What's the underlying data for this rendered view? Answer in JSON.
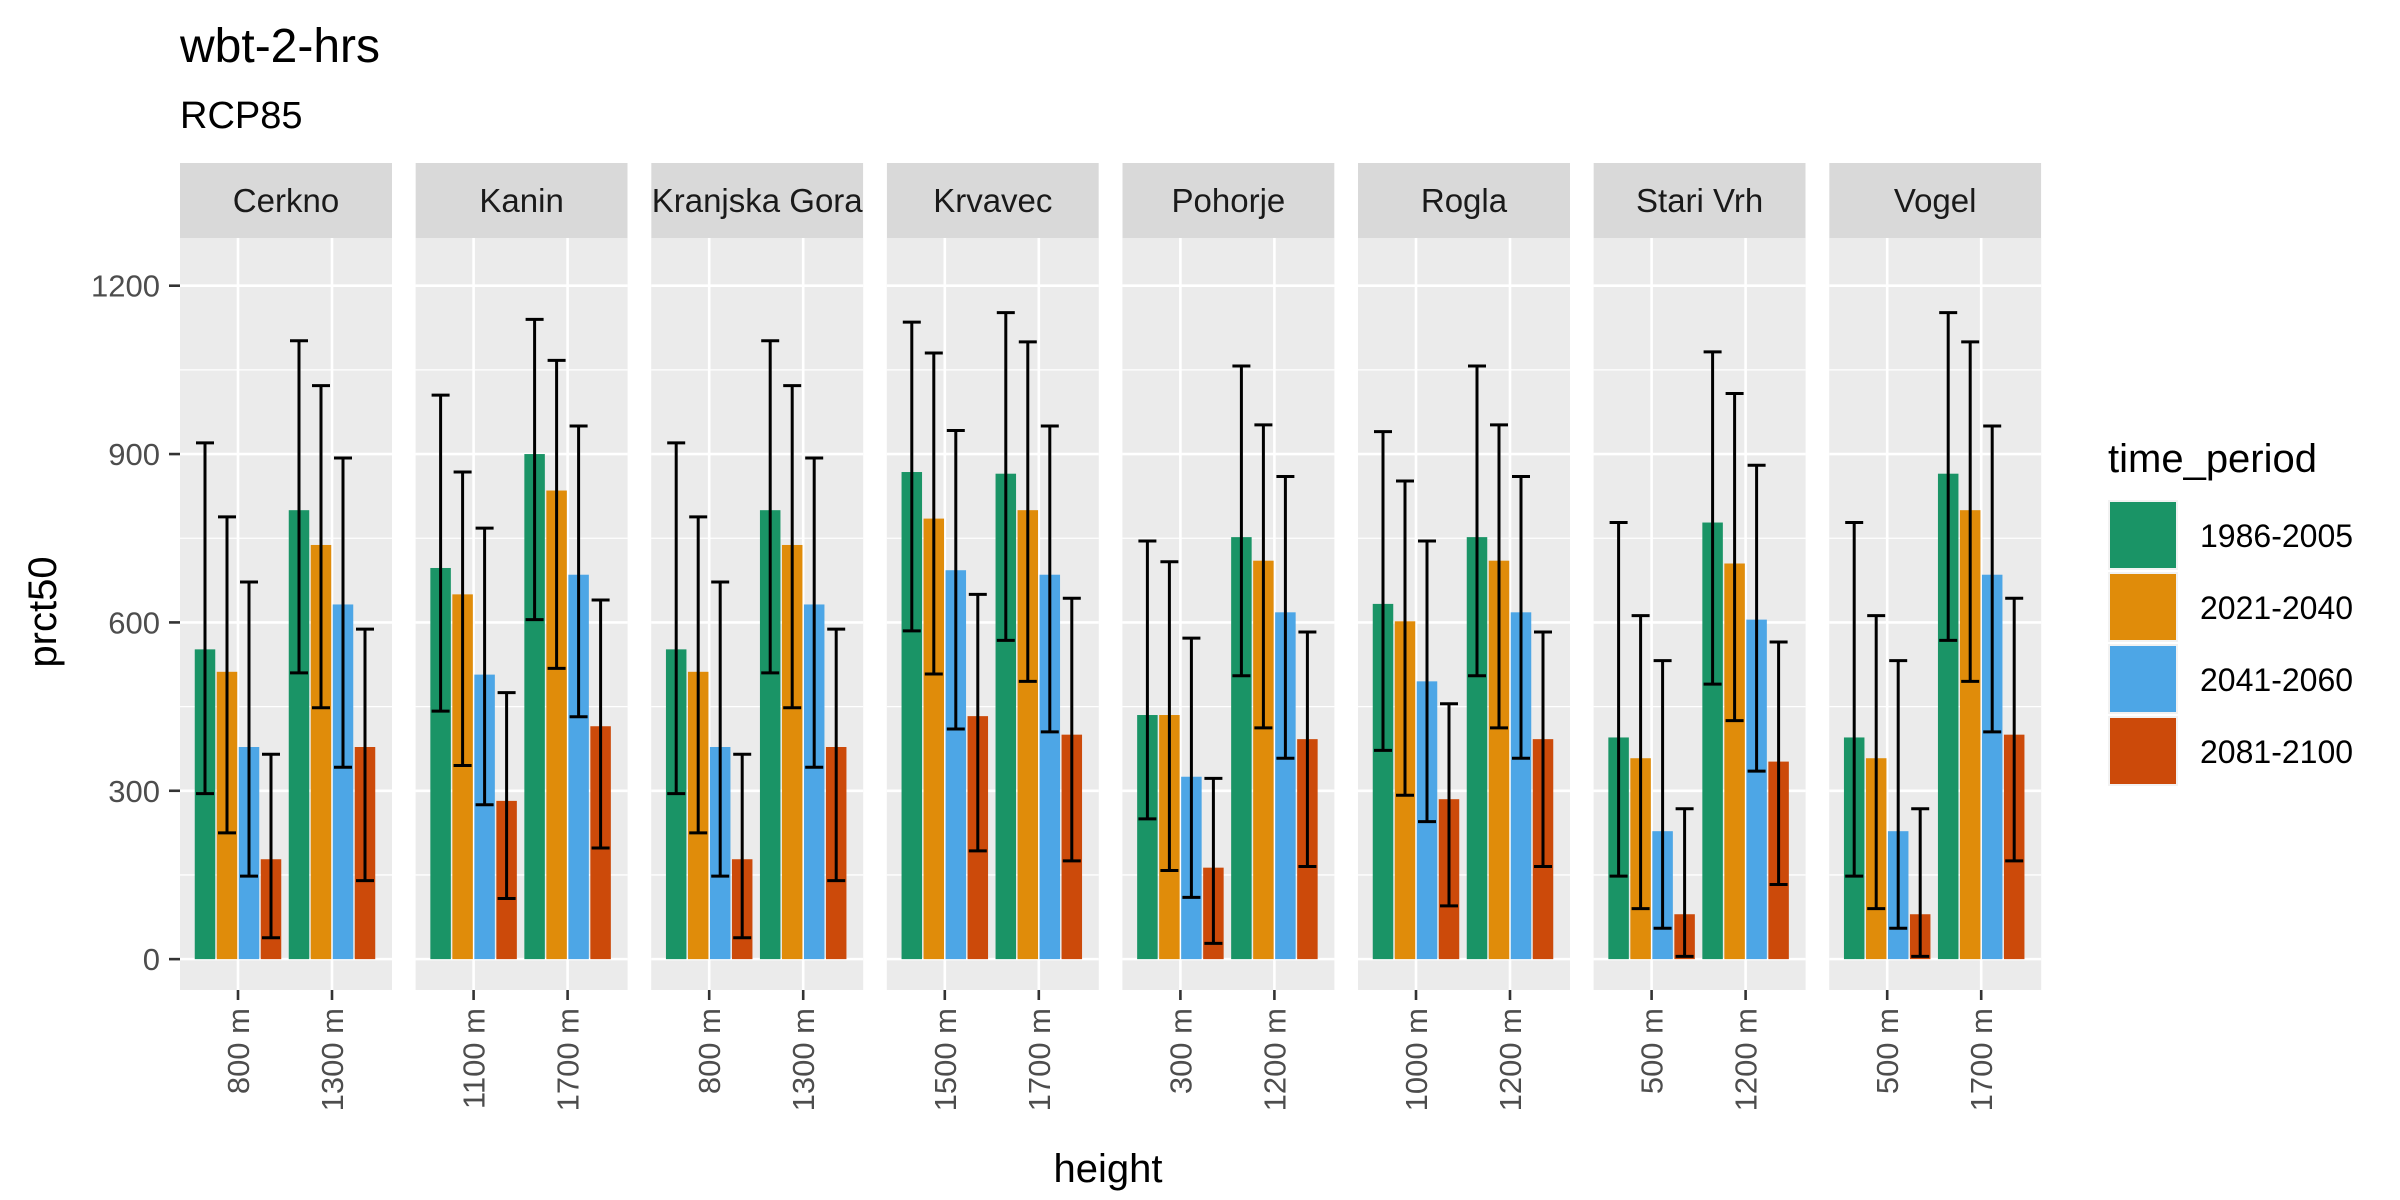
{
  "chart_data": {
    "type": "bar",
    "title": "wbt-2-hrs",
    "subtitle": "RCP85",
    "xlabel": "height",
    "ylabel": "prct50",
    "ylim": [
      -55,
      1285
    ],
    "yticks": [
      0,
      300,
      600,
      900,
      1200
    ],
    "legend": {
      "title": "time_period",
      "position": "right",
      "entries": [
        "1986-2005",
        "2021-2040",
        "2041-2060",
        "2081-2100"
      ]
    },
    "colors": [
      "#1a9466",
      "#e08c0a",
      "#4da6e6",
      "#cc4a0a"
    ],
    "panels": [
      {
        "name": "Cerkno",
        "groups": [
          {
            "height": "800 m",
            "values": [
              552,
              512,
              378,
              178
            ],
            "lower": [
              295,
              225,
              148,
              38
            ],
            "upper": [
              920,
              788,
              672,
              365
            ]
          },
          {
            "height": "1300 m",
            "values": [
              800,
              738,
              632,
              378
            ],
            "lower": [
              510,
              448,
              342,
              140
            ],
            "upper": [
              1102,
              1022,
              893,
              588
            ]
          }
        ]
      },
      {
        "name": "Kanin",
        "groups": [
          {
            "height": "1100 m",
            "values": [
              697,
              650,
              507,
              282
            ],
            "lower": [
              442,
              345,
              275,
              108
            ],
            "upper": [
              1005,
              868,
              768,
              475
            ]
          },
          {
            "height": "1700 m",
            "values": [
              900,
              835,
              685,
              415
            ],
            "lower": [
              605,
              518,
              432,
              198
            ],
            "upper": [
              1140,
              1067,
              950,
              640
            ]
          }
        ]
      },
      {
        "name": "Kranjska Gora",
        "groups": [
          {
            "height": "800 m",
            "values": [
              552,
              512,
              378,
              178
            ],
            "lower": [
              295,
              225,
              148,
              38
            ],
            "upper": [
              920,
              788,
              672,
              365
            ]
          },
          {
            "height": "1300 m",
            "values": [
              800,
              738,
              632,
              378
            ],
            "lower": [
              510,
              448,
              342,
              140
            ],
            "upper": [
              1102,
              1022,
              893,
              588
            ]
          }
        ]
      },
      {
        "name": "Krvavec",
        "groups": [
          {
            "height": "1500 m",
            "values": [
              868,
              785,
              693,
              433
            ],
            "lower": [
              585,
              508,
              410,
              193
            ],
            "upper": [
              1135,
              1080,
              942,
              650
            ]
          },
          {
            "height": "1700 m",
            "values": [
              865,
              800,
              685,
              400
            ],
            "lower": [
              568,
              495,
              405,
              175
            ],
            "upper": [
              1152,
              1100,
              950,
              643
            ]
          }
        ]
      },
      {
        "name": "Pohorje",
        "groups": [
          {
            "height": "300 m",
            "values": [
              435,
              435,
              325,
              163
            ],
            "lower": [
              250,
              158,
              110,
              28
            ],
            "upper": [
              745,
              708,
              572,
              322
            ]
          },
          {
            "height": "1200 m",
            "values": [
              752,
              710,
              618,
              392
            ],
            "lower": [
              505,
              412,
              358,
              165
            ],
            "upper": [
              1057,
              952,
              860,
              583
            ]
          }
        ]
      },
      {
        "name": "Rogla",
        "groups": [
          {
            "height": "1000 m",
            "values": [
              633,
              602,
              495,
              285
            ],
            "lower": [
              372,
              292,
              245,
              95
            ],
            "upper": [
              940,
              852,
              745,
              455
            ]
          },
          {
            "height": "1200 m",
            "values": [
              752,
              710,
              618,
              392
            ],
            "lower": [
              505,
              412,
              358,
              165
            ],
            "upper": [
              1057,
              952,
              860,
              583
            ]
          }
        ]
      },
      {
        "name": "Stari Vrh",
        "groups": [
          {
            "height": "500 m",
            "values": [
              395,
              358,
              228,
              80
            ],
            "lower": [
              148,
              90,
              55,
              5
            ],
            "upper": [
              778,
              612,
              532,
              268
            ]
          },
          {
            "height": "1200 m",
            "values": [
              778,
              705,
              605,
              352
            ],
            "lower": [
              490,
              425,
              335,
              133
            ],
            "upper": [
              1082,
              1008,
              880,
              565
            ]
          }
        ]
      },
      {
        "name": "Vogel",
        "groups": [
          {
            "height": "500 m",
            "values": [
              395,
              358,
              228,
              80
            ],
            "lower": [
              148,
              90,
              55,
              5
            ],
            "upper": [
              778,
              612,
              532,
              268
            ]
          },
          {
            "height": "1700 m",
            "values": [
              865,
              800,
              685,
              400
            ],
            "lower": [
              568,
              495,
              405,
              175
            ],
            "upper": [
              1152,
              1100,
              950,
              643
            ]
          }
        ]
      }
    ]
  }
}
